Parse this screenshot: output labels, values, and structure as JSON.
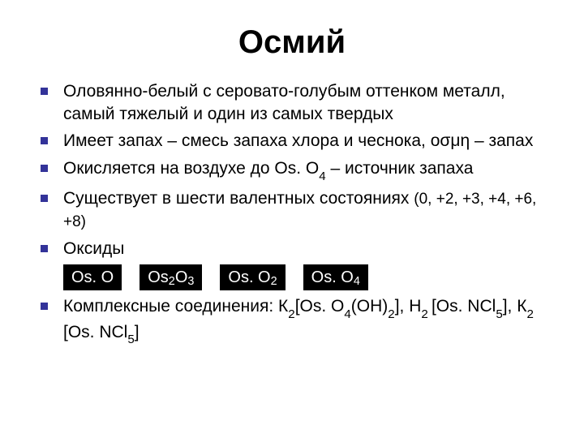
{
  "title": "Осмий",
  "bullets": {
    "b1": "Оловянно-белый с серовато-голубым оттенком металл, самый тяжелый и один из самых твердых",
    "b2": "Имеет запах – смесь запаха хлора и чеснока, οσμη – запах",
    "b3_pre": "Окисляется на воздухе до Os. O",
    "b3_sub": "4",
    "b3_post": " – источник запаха",
    "b4_pre": "Существует в шести валентных состояниях ",
    "b4_states": "(0, +2, +3, +4, +6, +8)",
    "b5": "Оксиды",
    "b6_pre": "Комплексные соединения: К",
    "b6_s1": "2",
    "b6_m1": "[Os. O",
    "b6_s2": "4",
    "b6_m2": "(ОН)",
    "b6_s3": "2",
    "b6_m3": "], Н",
    "b6_s4": "2 ",
    "b6_m4": "[Os. NCl",
    "b6_s5": "5",
    "b6_m5": "], К",
    "b6_s6": "2 ",
    "b6_m6": "[Os. NCl",
    "b6_s7": "5",
    "b6_m7": "]"
  },
  "oxides": {
    "o1": "Os. O",
    "o2a": "Os",
    "o2b": "2",
    "o2c": "O",
    "o2d": "3",
    "o3a": "Os. O",
    "o3b": "2",
    "o4a": "Os. O",
    "o4b": "4"
  },
  "colors": {
    "bullet": "#333399",
    "bg": "#ffffff",
    "text": "#000000",
    "oxide_bg": "#000000",
    "oxide_text": "#ffffff"
  },
  "fonts": {
    "title_size": 40,
    "body_size": 21,
    "states_size": 19,
    "oxide_size": 20
  }
}
